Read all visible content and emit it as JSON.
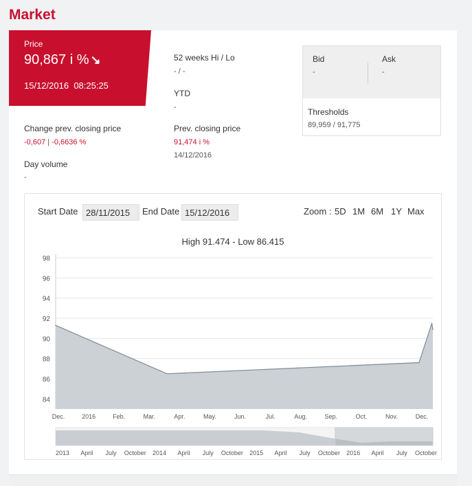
{
  "page_title": "Market",
  "price": {
    "label": "Price",
    "value": "90,867 i %",
    "date": "15/12/2016",
    "time": "08:25:25"
  },
  "weeks52": {
    "label": "52 weeks Hi / Lo",
    "value": "- / -"
  },
  "ytd": {
    "label": "YTD",
    "value": "-"
  },
  "change": {
    "label": "Change prev. closing price",
    "value1": "-0,607",
    "sep": " | ",
    "value2": "-0,6636 %"
  },
  "prev_close": {
    "label": "Prev. closing price",
    "value": "91,474 i %",
    "date": "14/12/2016"
  },
  "day_volume": {
    "label": "Day volume",
    "value": "-"
  },
  "bid": {
    "label": "Bid",
    "value": "-"
  },
  "ask": {
    "label": "Ask",
    "value": "-"
  },
  "thresholds": {
    "label": "Thresholds",
    "value": "89,959 / 91,775"
  },
  "chart_controls": {
    "start_label": "Start Date",
    "start_value": "28/11/2015",
    "end_label": "End Date",
    "end_value": "15/12/2016",
    "zoom_label": "Zoom :",
    "zoom_options": [
      "5D",
      "1M",
      "6M",
      "1Y",
      "Max"
    ]
  },
  "chart_data": {
    "type": "area",
    "title": "High 91.474 - Low 86.415",
    "xlabel": "",
    "ylabel": "",
    "ylim": [
      83,
      98
    ],
    "yticks": [
      98,
      96,
      94,
      92,
      90,
      88,
      86,
      84
    ],
    "x_tick_labels": [
      "Dec.",
      "2016",
      "Feb.",
      "Mar.",
      "Apr.",
      "May.",
      "Jun.",
      "Jul.",
      "Aug.",
      "Sep.",
      "Oct.",
      "Nov.",
      "Dec."
    ],
    "x": [
      "2015-11-28",
      "2016-03-20",
      "2016-12-01",
      "2016-12-14",
      "2016-12-15"
    ],
    "values": [
      91.3,
      86.5,
      87.6,
      91.5,
      90.9
    ],
    "color": "#ccd1d6",
    "line_color": "#7f8a93",
    "navigator_labels": [
      "2013",
      "April",
      "July",
      "October",
      "2014",
      "April",
      "July",
      "October",
      "2015",
      "April",
      "July",
      "October",
      "2016",
      "April",
      "July",
      "October"
    ]
  }
}
